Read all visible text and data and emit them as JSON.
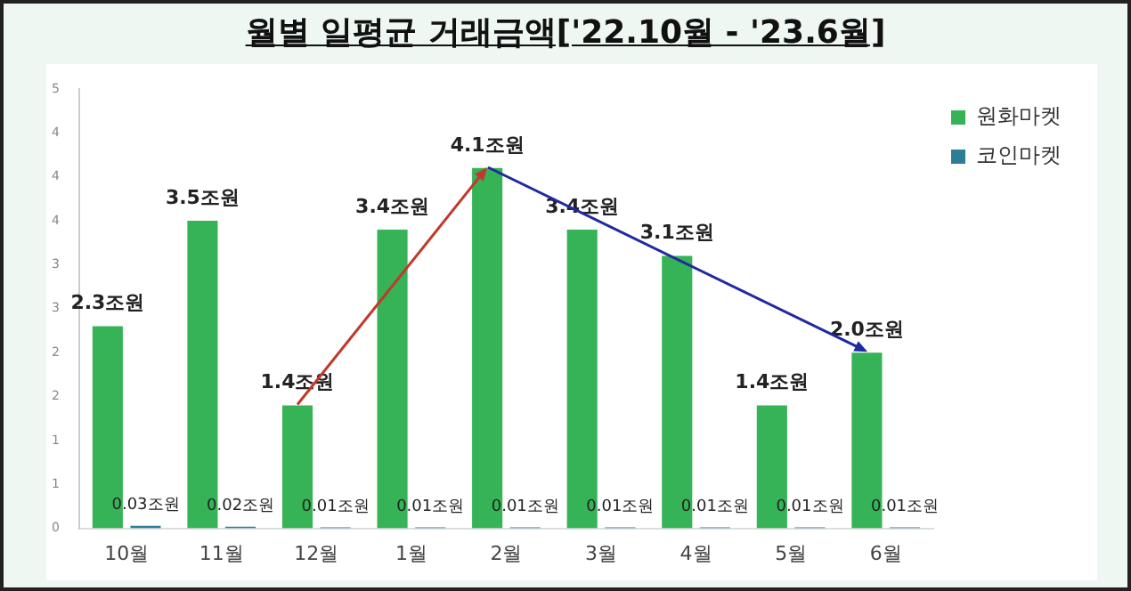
{
  "chart_data": {
    "type": "bar",
    "title": "월별 일평균 거래금액['22.10월 - '23.6월]",
    "categories": [
      "10월",
      "11월",
      "12월",
      "1월",
      "2월",
      "3월",
      "4월",
      "5월",
      "6월"
    ],
    "series": [
      {
        "name": "원화마켓",
        "color": "#35b356",
        "values": [
          2.3,
          3.5,
          1.4,
          3.4,
          4.1,
          3.4,
          3.1,
          1.4,
          2.0
        ],
        "value_labels": [
          "2.3조원",
          "3.5조원",
          "1.4조원",
          "3.4조원",
          "4.1조원",
          "3.4조원",
          "3.1조원",
          "1.4조원",
          "2.0조원"
        ]
      },
      {
        "name": "코인마켓",
        "color": "#2e7d96",
        "values": [
          0.03,
          0.02,
          0.01,
          0.01,
          0.01,
          0.01,
          0.01,
          0.01,
          0.01
        ],
        "value_labels": [
          "0.03조원",
          "0.02조원",
          "0.01조원",
          "0.01조원",
          "0.01조원",
          "0.01조원",
          "0.01조원",
          "0.01조원",
          "0.01조원"
        ]
      }
    ],
    "ylim": [
      0,
      5
    ],
    "yticks": [
      {
        "value": 0,
        "label": "0"
      },
      {
        "value": 0.5,
        "label": "1"
      },
      1,
      {
        "value": 1.5,
        "label": "2"
      },
      2,
      {
        "value": 2.5,
        "label": "3"
      },
      3,
      {
        "value": 3.5,
        "label": "4"
      },
      4,
      {
        "value": 4.5,
        "label": "4"
      },
      5
    ],
    "grid": false,
    "legend": "top right"
  }
}
